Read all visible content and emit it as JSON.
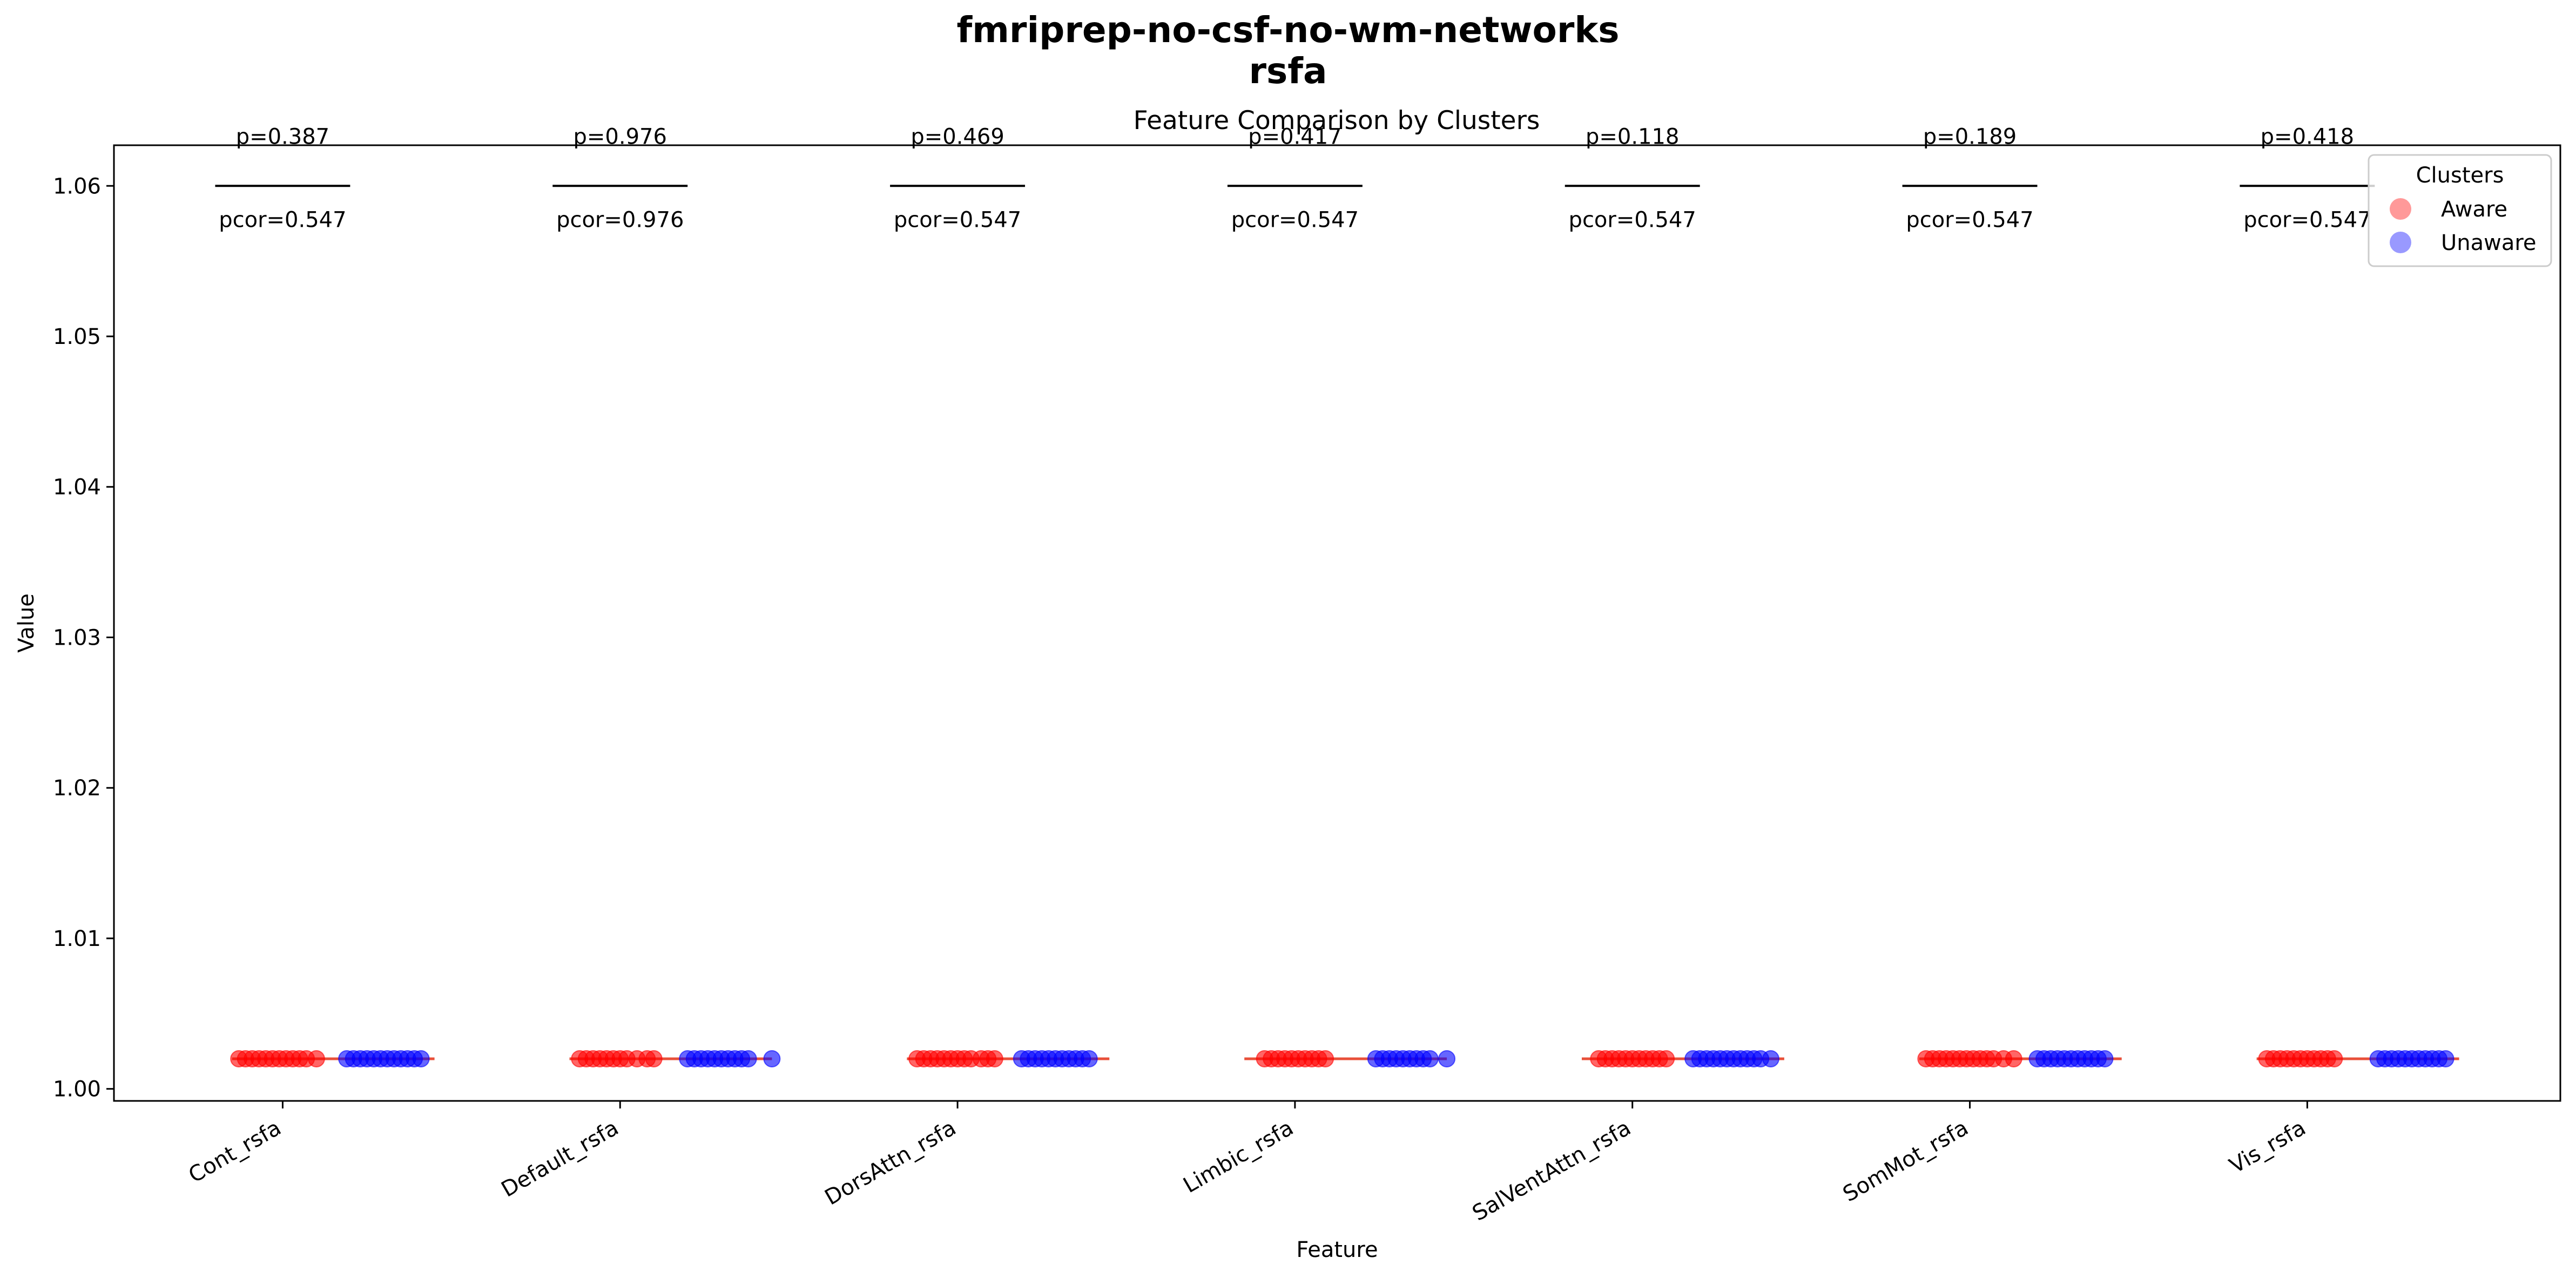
{
  "figure": {
    "title_line1": "fmriprep-no-csf-no-wm-networks",
    "title_line2": "rsfa"
  },
  "chart_data": {
    "type": "strip",
    "title": "Feature Comparison by Clusters",
    "xlabel": "Feature",
    "ylabel": "Value",
    "ylim": [
      0.9992,
      1.0627
    ],
    "yticks": [
      "1.00",
      "1.01",
      "1.02",
      "1.03",
      "1.04",
      "1.05",
      "1.06"
    ],
    "ytick_values": [
      1.0,
      1.01,
      1.02,
      1.03,
      1.04,
      1.05,
      1.06
    ],
    "categories": [
      "Cont_rsfa",
      "Default_rsfa",
      "DorsAttn_rsfa",
      "Limbic_rsfa",
      "SalVentAttn_rsfa",
      "SomMot_rsfa",
      "Vis_rsfa"
    ],
    "grid": false,
    "legend": {
      "title": "Clusters",
      "placement": "top-right",
      "entries": [
        {
          "label": "Aware",
          "color": "#ff9999"
        },
        {
          "label": "Unaware",
          "color": "#9999ff"
        }
      ]
    },
    "series_colors": {
      "Aware": "#ff0000",
      "Unaware": "#0000ff",
      "median_line": "#e8503a"
    },
    "annotations": [
      {
        "category": "Cont_rsfa",
        "p": "p=0.387",
        "pcor": "pcor=0.547",
        "y": 1.06
      },
      {
        "category": "Default_rsfa",
        "p": "p=0.976",
        "pcor": "pcor=0.976",
        "y": 1.06
      },
      {
        "category": "DorsAttn_rsfa",
        "p": "p=0.469",
        "pcor": "pcor=0.547",
        "y": 1.06
      },
      {
        "category": "Limbic_rsfa",
        "p": "p=0.417",
        "pcor": "pcor=0.547",
        "y": 1.06
      },
      {
        "category": "SalVentAttn_rsfa",
        "p": "p=0.118",
        "pcor": "pcor=0.547",
        "y": 1.06
      },
      {
        "category": "SomMot_rsfa",
        "p": "p=0.189",
        "pcor": "pcor=0.547",
        "y": 1.06
      },
      {
        "category": "Vis_rsfa",
        "p": "p=0.418",
        "pcor": "pcor=0.547",
        "y": 1.06
      }
    ],
    "series": [
      {
        "name": "Aware",
        "value": 1.002,
        "groups": [
          {
            "category": "Cont_rsfa",
            "x_offsets": [
              -0.13,
              -0.11,
              -0.09,
              -0.07,
              -0.05,
              -0.03,
              -0.01,
              0.01,
              0.03,
              0.05,
              0.07,
              0.1
            ]
          },
          {
            "category": "Default_rsfa",
            "x_offsets": [
              -0.12,
              -0.1,
              -0.08,
              -0.06,
              -0.04,
              -0.02,
              0.0,
              0.02,
              0.05,
              0.08,
              0.1
            ]
          },
          {
            "category": "DorsAttn_rsfa",
            "x_offsets": [
              -0.12,
              -0.1,
              -0.08,
              -0.06,
              -0.04,
              -0.02,
              0.0,
              0.02,
              0.04,
              0.07,
              0.09,
              0.11
            ]
          },
          {
            "category": "Limbic_rsfa",
            "x_offsets": [
              -0.09,
              -0.07,
              -0.05,
              -0.03,
              -0.01,
              0.01,
              0.03,
              0.05,
              0.07,
              0.09
            ]
          },
          {
            "category": "SalVentAttn_rsfa",
            "x_offsets": [
              -0.1,
              -0.08,
              -0.06,
              -0.04,
              -0.02,
              0.0,
              0.02,
              0.04,
              0.06,
              0.08,
              0.1
            ]
          },
          {
            "category": "SomMot_rsfa",
            "x_offsets": [
              -0.13,
              -0.11,
              -0.09,
              -0.07,
              -0.05,
              -0.03,
              -0.01,
              0.01,
              0.03,
              0.05,
              0.07,
              0.1,
              0.13
            ]
          },
          {
            "category": "Vis_rsfa",
            "x_offsets": [
              -0.12,
              -0.1,
              -0.08,
              -0.06,
              -0.04,
              -0.02,
              0.0,
              0.02,
              0.04,
              0.06,
              0.08
            ]
          }
        ]
      },
      {
        "name": "Unaware",
        "value": 1.002,
        "groups": [
          {
            "category": "Cont_rsfa",
            "x_offsets": [
              0.19,
              0.21,
              0.23,
              0.25,
              0.27,
              0.29,
              0.31,
              0.33,
              0.35,
              0.37,
              0.39,
              0.41
            ]
          },
          {
            "category": "Default_rsfa",
            "x_offsets": [
              0.2,
              0.22,
              0.24,
              0.26,
              0.28,
              0.3,
              0.32,
              0.34,
              0.36,
              0.38,
              0.45
            ]
          },
          {
            "category": "DorsAttn_rsfa",
            "x_offsets": [
              0.19,
              0.21,
              0.23,
              0.25,
              0.27,
              0.29,
              0.31,
              0.33,
              0.35,
              0.37,
              0.39
            ]
          },
          {
            "category": "Limbic_rsfa",
            "x_offsets": [
              0.24,
              0.26,
              0.28,
              0.3,
              0.32,
              0.34,
              0.36,
              0.38,
              0.4,
              0.45
            ]
          },
          {
            "category": "SalVentAttn_rsfa",
            "x_offsets": [
              0.18,
              0.2,
              0.22,
              0.24,
              0.26,
              0.28,
              0.3,
              0.32,
              0.34,
              0.36,
              0.38,
              0.41
            ]
          },
          {
            "category": "SomMot_rsfa",
            "x_offsets": [
              0.2,
              0.22,
              0.24,
              0.26,
              0.28,
              0.3,
              0.32,
              0.34,
              0.36,
              0.38,
              0.4
            ]
          },
          {
            "category": "Vis_rsfa",
            "x_offsets": [
              0.21,
              0.23,
              0.25,
              0.27,
              0.29,
              0.31,
              0.33,
              0.35,
              0.37,
              0.39,
              0.41
            ]
          }
        ]
      }
    ]
  }
}
